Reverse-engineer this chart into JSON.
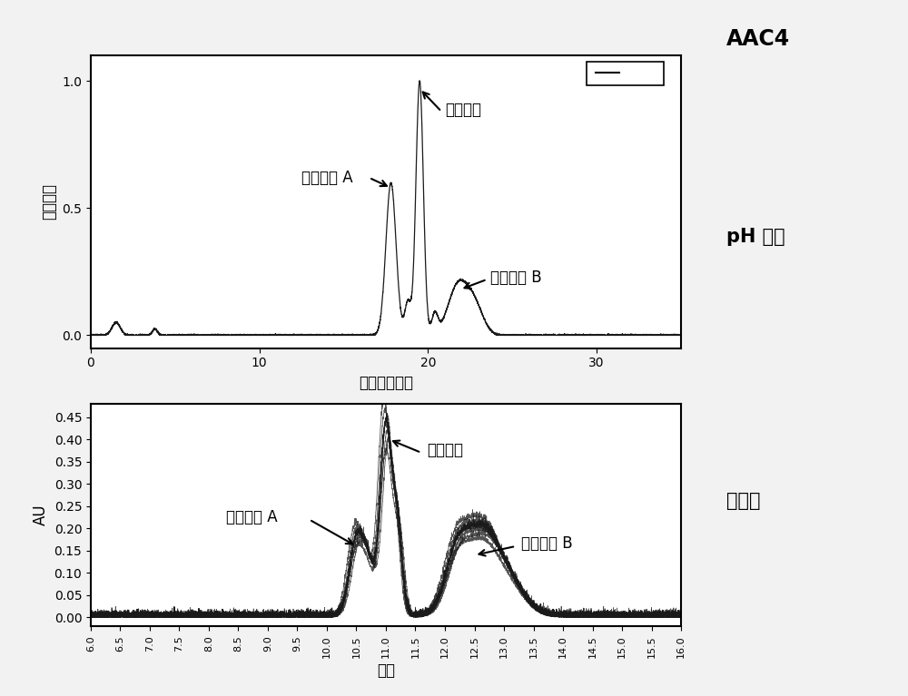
{
  "title": "AAC4",
  "top_panel": {
    "ylabel": "相对村度",
    "xlabel": "时间（分钟）",
    "xlim": [
      0,
      35
    ],
    "ylim": [
      -0.05,
      1.1
    ],
    "yticks": [
      0.0,
      0.5,
      1.0
    ],
    "xticks": [
      0.0,
      10.0,
      20.0,
      30.0
    ],
    "label_heterodimer": "异二聚体",
    "label_homoA": "同二聚体 A",
    "label_homoB": "同二聚体 B",
    "side_label": "pH 梯度"
  },
  "bottom_panel": {
    "ylabel": "AU",
    "xlabel": "分钟",
    "xlim": [
      6.0,
      16.0
    ],
    "ylim": [
      -0.02,
      0.48
    ],
    "yticks": [
      0.0,
      0.05,
      0.1,
      0.15,
      0.2,
      0.25,
      0.3,
      0.35,
      0.4,
      0.45
    ],
    "xticks": [
      6.0,
      6.5,
      7.0,
      7.5,
      8.0,
      8.5,
      9.0,
      9.5,
      10.0,
      10.5,
      11.0,
      11.5,
      12.0,
      12.5,
      13.0,
      13.5,
      14.0,
      14.5,
      15.0,
      15.5,
      16.0
    ],
    "label_heterodimer": "异二聚体",
    "label_homoA": "同二聚体 A",
    "label_homoB": "同二聚体 B",
    "side_label": "盐梯度"
  },
  "bg_color": "#f2f2f2",
  "plot_bg": "#ffffff",
  "line_color": "#1a1a1a",
  "font_size_title": 17,
  "font_size_labels": 12,
  "font_size_ticks": 10,
  "font_size_side": 15
}
